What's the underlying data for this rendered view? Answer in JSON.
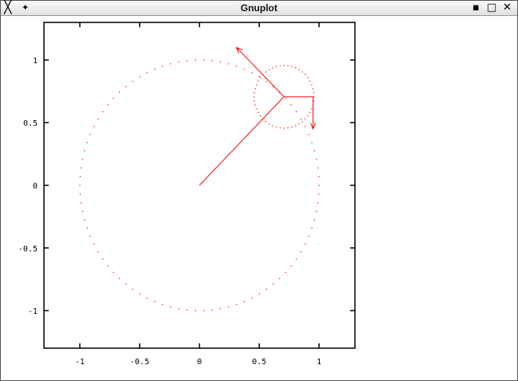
{
  "window": {
    "title": "Gnuplot",
    "icons": [
      "x-logo-icon",
      "pin-icon",
      "minimize-icon",
      "maximize-icon",
      "close-icon"
    ]
  },
  "chart_data": {
    "type": "line",
    "title": "",
    "xlabel": "",
    "ylabel": "",
    "xlim": [
      -1.3,
      1.3
    ],
    "ylim": [
      -1.3,
      1.3
    ],
    "xticks": [
      "-1",
      "-0.5",
      "0",
      "0.5",
      "1"
    ],
    "xtick_values": [
      -1,
      -0.5,
      0,
      0.5,
      1
    ],
    "yticks": [
      "1",
      "0.5",
      "0",
      "-0.5",
      "-1"
    ],
    "ytick_values": [
      1,
      0.5,
      0,
      -0.5,
      -1
    ],
    "grid": false,
    "color": "#ff0000",
    "unit_circle": {
      "center": [
        0,
        0
      ],
      "radius": 1,
      "style": "dotted"
    },
    "small_circle": {
      "center": [
        0.707,
        0.707
      ],
      "radius": 0.25,
      "style": "dotted"
    },
    "segments": [
      {
        "from": [
          0,
          0
        ],
        "to": [
          0.707,
          0.707
        ],
        "arrow": false
      },
      {
        "from": [
          0.707,
          0.707
        ],
        "to": [
          0.31,
          1.1
        ],
        "arrow": true
      },
      {
        "from": [
          0.707,
          0.707
        ],
        "to": [
          0.95,
          0.707
        ],
        "arrow": false
      },
      {
        "from": [
          0.95,
          0.707
        ],
        "to": [
          0.95,
          0.45
        ],
        "arrow": true
      }
    ]
  }
}
